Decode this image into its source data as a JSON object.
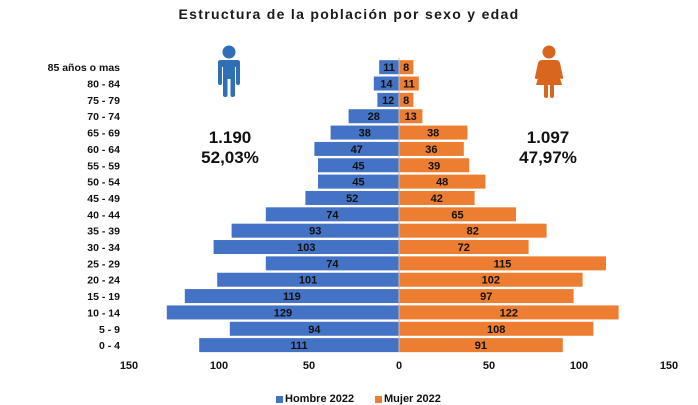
{
  "chart_data": {
    "type": "bar",
    "orientation": "horizontal-population-pyramid",
    "title": "Estructura de la población por sexo y edad",
    "categories": [
      "85 años o mas",
      "80 - 84",
      "75 - 79",
      "70 - 74",
      "65 - 69",
      "60 - 64",
      "55 - 59",
      "50 - 54",
      "45 - 49",
      "40 - 44",
      "35 - 39",
      "30 - 34",
      "25 - 29",
      "20 - 24",
      "15 - 19",
      "10 - 14",
      "5 - 9",
      "0 - 4"
    ],
    "series": [
      {
        "name": "Hombre 2022",
        "color": "#4472C4",
        "side": "left",
        "values": [
          11,
          14,
          12,
          28,
          38,
          47,
          45,
          45,
          52,
          74,
          93,
          103,
          74,
          101,
          119,
          129,
          94,
          111
        ]
      },
      {
        "name": "Mujer 2022",
        "color": "#ED7D31",
        "side": "right",
        "values": [
          8,
          11,
          8,
          13,
          38,
          36,
          39,
          48,
          42,
          65,
          82,
          72,
          115,
          102,
          97,
          122,
          108,
          91
        ]
      }
    ],
    "xaxis_ticks": [
      "150",
      "100",
      "50",
      "0",
      "50",
      "100",
      "150"
    ],
    "xlim": [
      -150,
      150
    ],
    "legend_position": "bottom"
  },
  "totals": {
    "male": {
      "count": "1.190",
      "percent": "52,03%",
      "icon": "male-person-icon",
      "color": "#2F6FB5"
    },
    "female": {
      "count": "1.097",
      "percent": "47,97%",
      "icon": "female-person-icon",
      "color": "#D9661F"
    }
  }
}
